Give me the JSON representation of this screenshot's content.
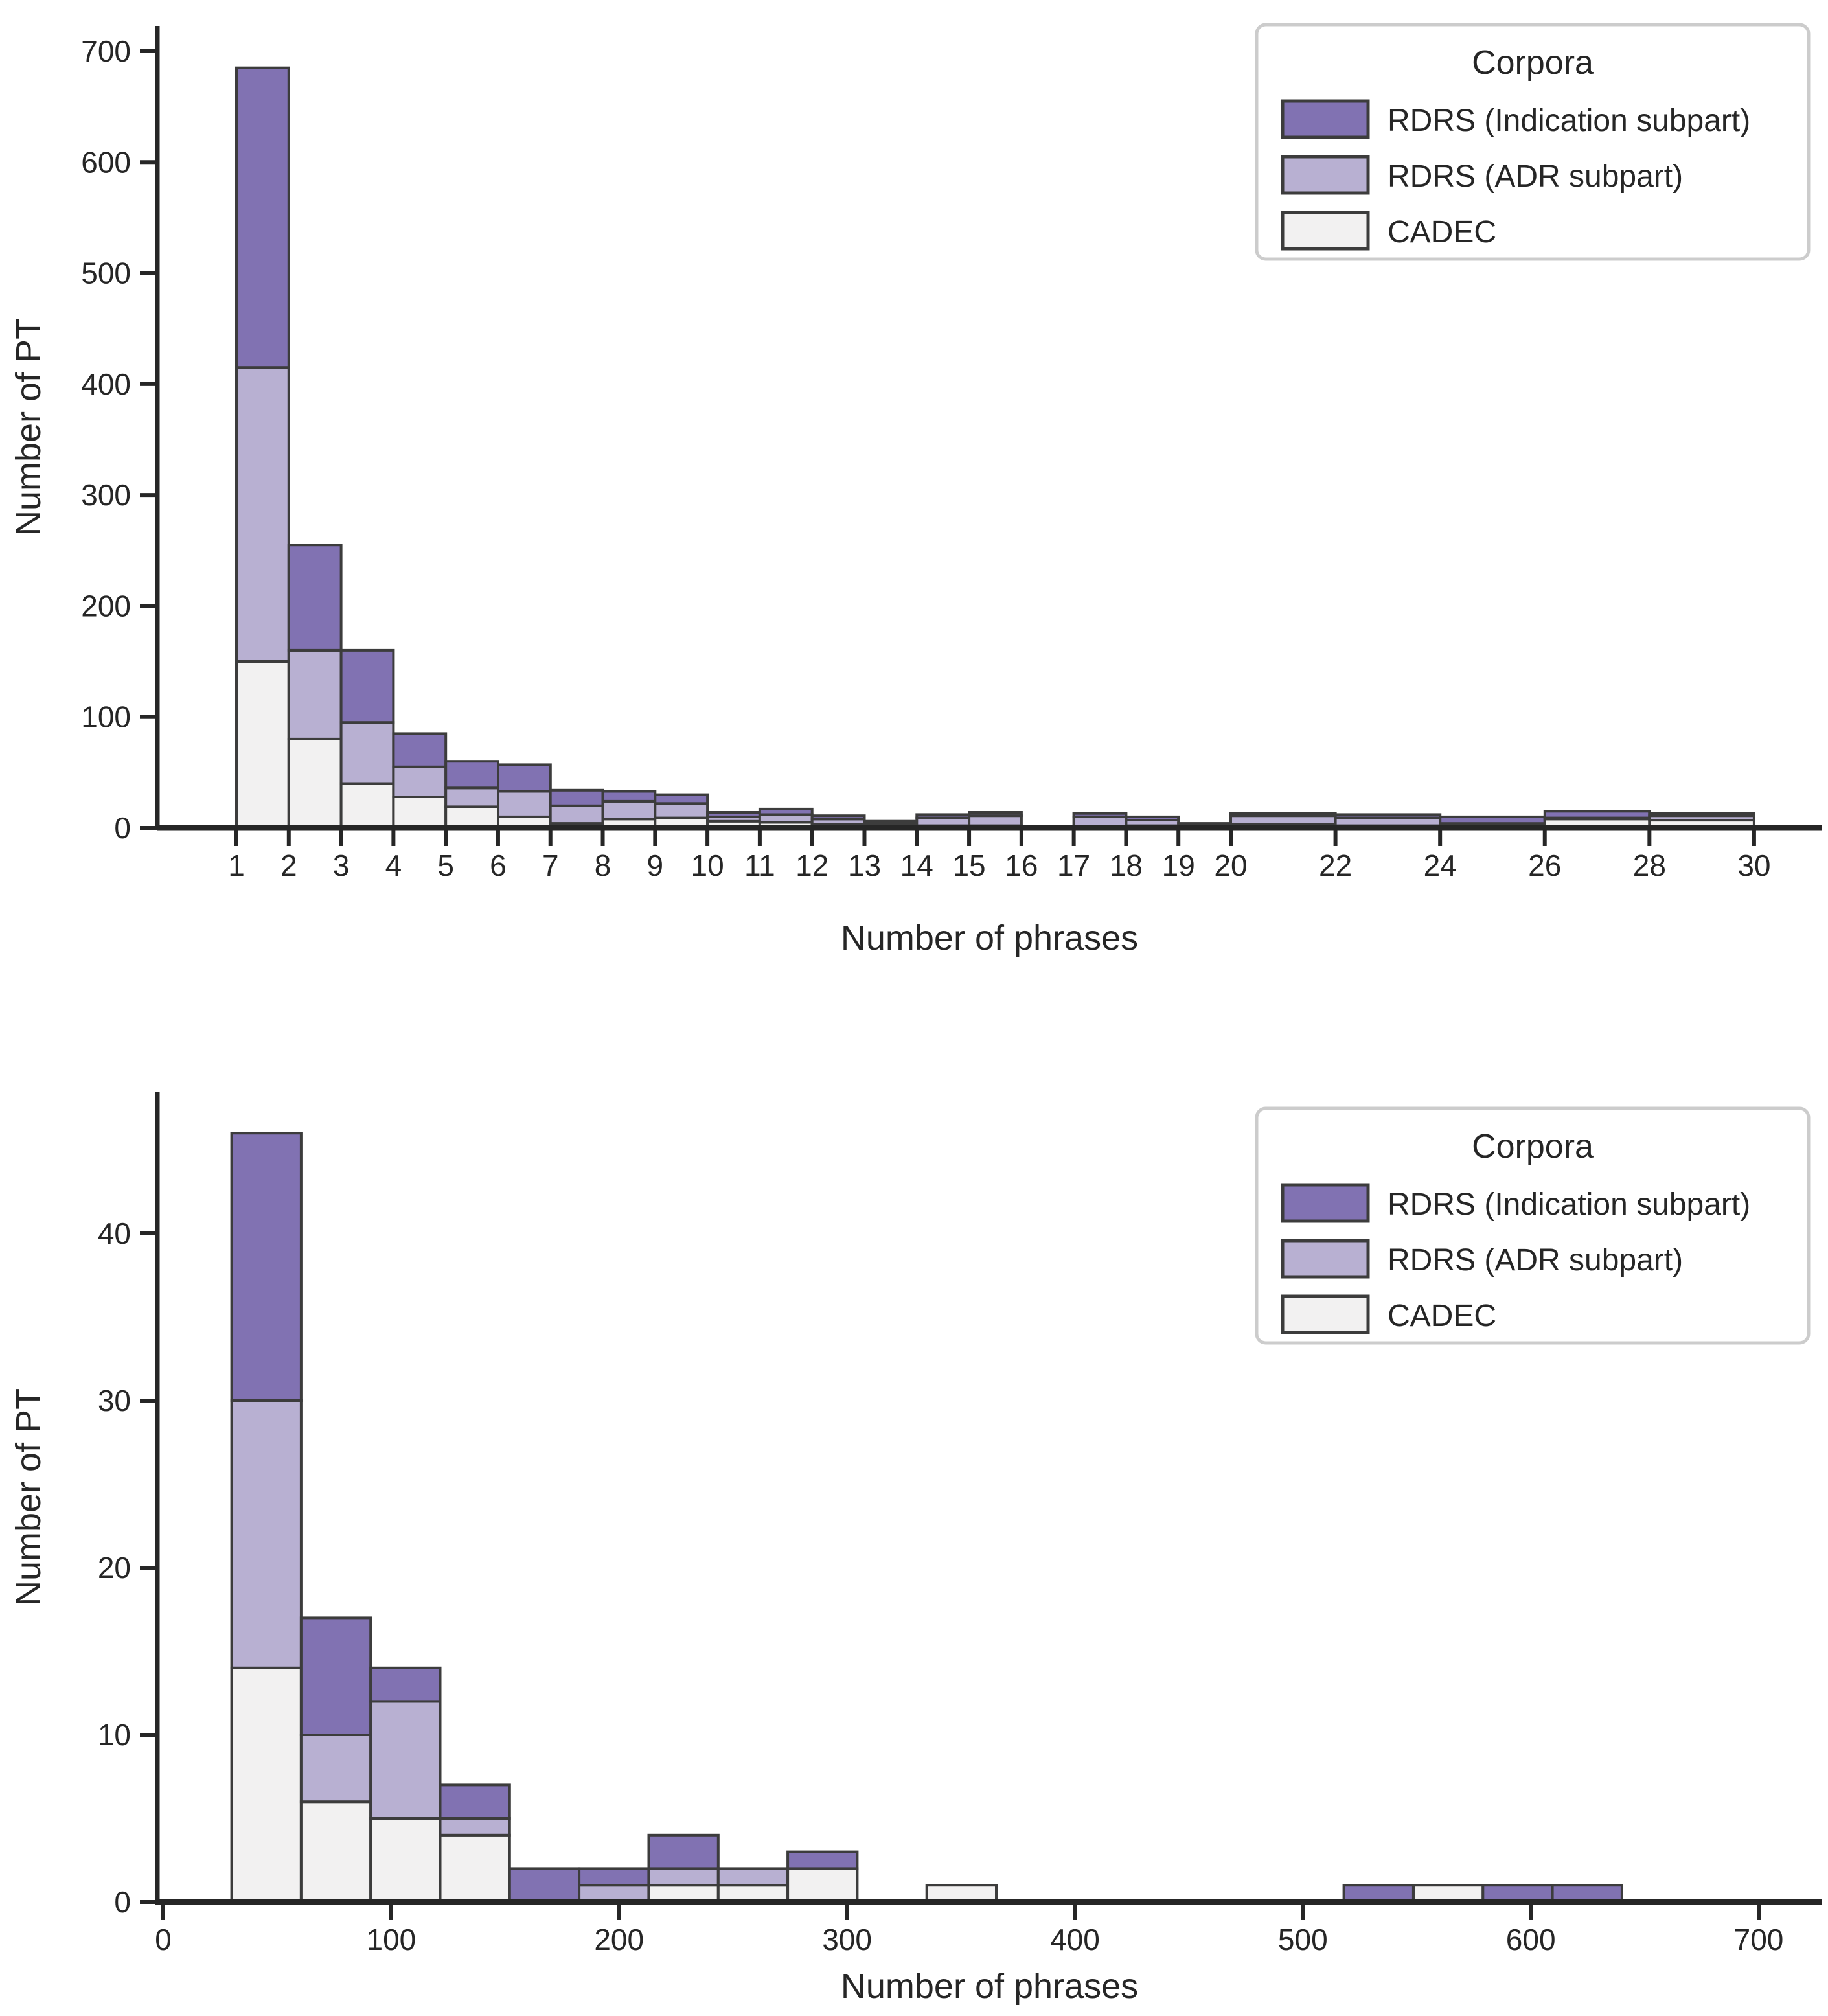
{
  "figure": {
    "background": "#ffffff"
  },
  "colors": {
    "indication": "#8172b2",
    "adr": "#b8b0d2",
    "cadec": "#f2f1f1",
    "bar_edge": "#3c3c3c",
    "axis": "#262626",
    "legend_border": "#cccccc",
    "legend_bg": "#ffffff"
  },
  "legend": {
    "title": "Corpora",
    "entries": [
      {
        "key": "indication",
        "label": "RDRS (Indication subpart)"
      },
      {
        "key": "adr",
        "label": "RDRS (ADR subpart)"
      },
      {
        "key": "cadec",
        "label": "CADEC"
      }
    ]
  },
  "chart_data": [
    {
      "type": "bar",
      "stacked": true,
      "title": "",
      "xlabel": "Number of phrases",
      "ylabel": "Number of PT",
      "xlim": [
        -0.5,
        31.3
      ],
      "ylim": [
        0,
        722
      ],
      "grid": false,
      "legend_position": "upper right",
      "xticks": [
        1,
        2,
        3,
        4,
        5,
        6,
        7,
        8,
        9,
        10,
        11,
        12,
        13,
        14,
        15,
        16,
        17,
        18,
        19,
        20,
        22,
        24,
        26,
        28,
        30
      ],
      "yticks": [
        0,
        100,
        200,
        300,
        400,
        500,
        600,
        700
      ],
      "series_order": [
        "cadec",
        "adr",
        "indication"
      ],
      "bars": [
        {
          "x0": 1,
          "x1": 2,
          "cadec": 150,
          "adr": 265,
          "indication": 270
        },
        {
          "x0": 2,
          "x1": 3,
          "cadec": 80,
          "adr": 80,
          "indication": 95
        },
        {
          "x0": 3,
          "x1": 4,
          "cadec": 40,
          "adr": 55,
          "indication": 65
        },
        {
          "x0": 4,
          "x1": 5,
          "cadec": 28,
          "adr": 27,
          "indication": 30
        },
        {
          "x0": 5,
          "x1": 6,
          "cadec": 19,
          "adr": 17,
          "indication": 24
        },
        {
          "x0": 6,
          "x1": 7,
          "cadec": 10,
          "adr": 23,
          "indication": 24
        },
        {
          "x0": 7,
          "x1": 8,
          "cadec": 4,
          "adr": 16,
          "indication": 14
        },
        {
          "x0": 8,
          "x1": 9,
          "cadec": 8,
          "adr": 16,
          "indication": 9
        },
        {
          "x0": 9,
          "x1": 10,
          "cadec": 9,
          "adr": 13,
          "indication": 8
        },
        {
          "x0": 10,
          "x1": 11,
          "cadec": 6,
          "adr": 4,
          "indication": 4
        },
        {
          "x0": 11,
          "x1": 12,
          "cadec": 5,
          "adr": 7,
          "indication": 5
        },
        {
          "x0": 12,
          "x1": 13,
          "cadec": 3,
          "adr": 5,
          "indication": 3
        },
        {
          "x0": 13,
          "x1": 14,
          "cadec": 1,
          "adr": 3,
          "indication": 2
        },
        {
          "x0": 14,
          "x1": 15,
          "cadec": 2,
          "adr": 7,
          "indication": 3
        },
        {
          "x0": 15,
          "x1": 16,
          "cadec": 2,
          "adr": 9,
          "indication": 3
        },
        {
          "x0": 17,
          "x1": 18,
          "cadec": 0,
          "adr": 10,
          "indication": 3
        },
        {
          "x0": 18,
          "x1": 19,
          "cadec": 2,
          "adr": 5,
          "indication": 3
        },
        {
          "x0": 19,
          "x1": 20,
          "cadec": 0,
          "adr": 4,
          "indication": 0
        },
        {
          "x0": 20,
          "x1": 22,
          "cadec": 3,
          "adr": 8,
          "indication": 2
        },
        {
          "x0": 22,
          "x1": 24,
          "cadec": 2,
          "adr": 7,
          "indication": 3
        },
        {
          "x0": 24,
          "x1": 26,
          "cadec": 1,
          "adr": 3,
          "indication": 6
        },
        {
          "x0": 26,
          "x1": 28,
          "cadec": 8,
          "adr": 1,
          "indication": 6
        },
        {
          "x0": 28,
          "x1": 30,
          "cadec": 7,
          "adr": 4,
          "indication": 2
        }
      ]
    },
    {
      "type": "bar",
      "stacked": true,
      "title": "",
      "xlabel": "Number of phrases",
      "ylabel": "Number of PT",
      "xlim": [
        -2.5,
        728
      ],
      "ylim": [
        0,
        48.5
      ],
      "grid": false,
      "legend_position": "upper right",
      "xticks": [
        0,
        100,
        200,
        300,
        400,
        500,
        600,
        700
      ],
      "yticks": [
        0,
        10,
        20,
        30,
        40
      ],
      "series_order": [
        "cadec",
        "adr",
        "indication"
      ],
      "bars": [
        {
          "x0": 30,
          "x1": 60.5,
          "cadec": 14,
          "adr": 16,
          "indication": 16
        },
        {
          "x0": 60.5,
          "x1": 91,
          "cadec": 6,
          "adr": 4,
          "indication": 7
        },
        {
          "x0": 91,
          "x1": 121.5,
          "cadec": 5,
          "adr": 7,
          "indication": 2
        },
        {
          "x0": 121.5,
          "x1": 152,
          "cadec": 4,
          "adr": 1,
          "indication": 2
        },
        {
          "x0": 152,
          "x1": 182.5,
          "cadec": 0,
          "adr": 0,
          "indication": 2
        },
        {
          "x0": 182.5,
          "x1": 213,
          "cadec": 0,
          "adr": 1,
          "indication": 1
        },
        {
          "x0": 213,
          "x1": 243.5,
          "cadec": 1,
          "adr": 1,
          "indication": 2
        },
        {
          "x0": 243.5,
          "x1": 274,
          "cadec": 1,
          "adr": 1,
          "indication": 0
        },
        {
          "x0": 274,
          "x1": 304.5,
          "cadec": 2,
          "adr": 0,
          "indication": 1
        },
        {
          "x0": 335,
          "x1": 365.5,
          "cadec": 1,
          "adr": 0,
          "indication": 0
        },
        {
          "x0": 518,
          "x1": 548.5,
          "cadec": 0,
          "adr": 0,
          "indication": 1
        },
        {
          "x0": 548.5,
          "x1": 579,
          "cadec": 1,
          "adr": 0,
          "indication": 0
        },
        {
          "x0": 579,
          "x1": 609.5,
          "cadec": 0,
          "adr": 0,
          "indication": 1
        },
        {
          "x0": 609.5,
          "x1": 640,
          "cadec": 0,
          "adr": 0,
          "indication": 1
        }
      ]
    }
  ]
}
